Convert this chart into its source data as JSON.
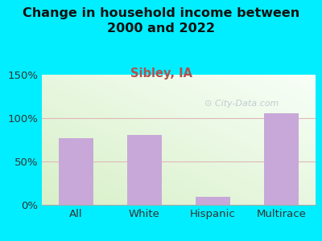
{
  "title": "Change in household income between\n2000 and 2022",
  "subtitle": "Sibley, IA",
  "categories": [
    "All",
    "White",
    "Hispanic",
    "Multirace"
  ],
  "values": [
    77,
    81,
    9,
    106
  ],
  "bar_color": "#c8a8d8",
  "title_fontsize": 11.5,
  "subtitle_fontsize": 10.5,
  "subtitle_color": "#b05050",
  "title_color": "#111111",
  "background_outer": "#00eeff",
  "ylim": [
    0,
    150
  ],
  "yticks": [
    0,
    50,
    100,
    150
  ],
  "ytick_labels": [
    "0%",
    "50%",
    "100%",
    "150%"
  ],
  "watermark": "City-Data.com",
  "watermark_color": "#b8c4cc",
  "grid_color": "#e0b8b8",
  "tick_label_fontsize": 9.5,
  "bar_width": 0.5
}
